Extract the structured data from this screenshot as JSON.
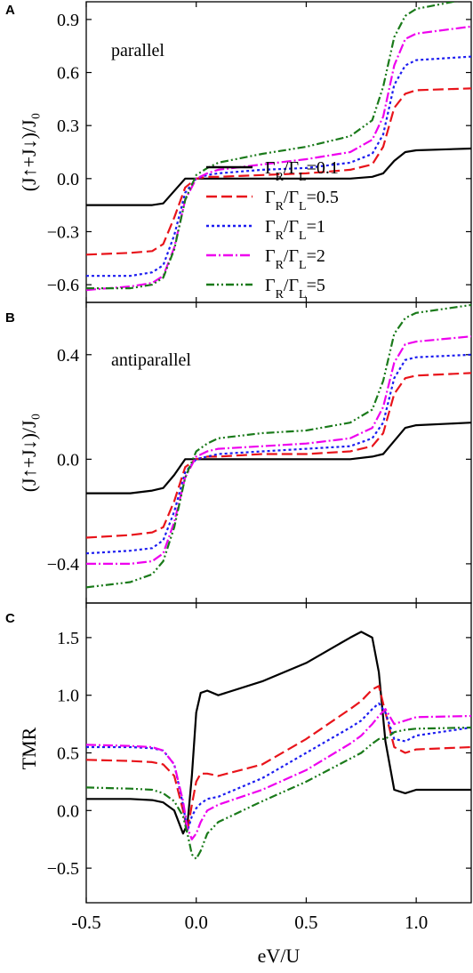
{
  "figure": {
    "x_axis_label": "eV/U",
    "x_ticks": [
      "-0.5",
      "0.0",
      "0.5",
      "1.0"
    ],
    "x_range": [
      -0.5,
      1.25
    ]
  },
  "legend": [
    {
      "label": "Γ_R/Γ_L=0.1",
      "color": "#000000",
      "dash": "solid"
    },
    {
      "label": "Γ_R/Γ_L=0.5",
      "color": "#e8141b",
      "dash": "dashed"
    },
    {
      "label": "Γ_R/Γ_L=1",
      "color": "#1c1cf0",
      "dash": "dotted"
    },
    {
      "label": "Γ_R/Γ_L=2",
      "color": "#ee00ee",
      "dash": "dashdot"
    },
    {
      "label": "Γ_R/Γ_L=5",
      "color": "#1a7a1a",
      "dash": "dashdotdot"
    }
  ],
  "chart_data": [
    {
      "type": "line",
      "panel_label": "A",
      "annotation": "parallel",
      "ylabel": "(J↑+J↓)/J₀",
      "xlim": [
        -0.5,
        1.25
      ],
      "ylim": [
        -0.7,
        1.0
      ],
      "y_ticks": [
        -0.6,
        -0.3,
        0.0,
        0.3,
        0.6,
        0.9
      ],
      "x": [
        -0.5,
        -0.3,
        -0.2,
        -0.15,
        -0.1,
        -0.05,
        0.0,
        0.05,
        0.1,
        0.3,
        0.5,
        0.7,
        0.8,
        0.85,
        0.9,
        0.95,
        1.0,
        1.25
      ],
      "series": [
        {
          "name": "Γ_R/Γ_L=0.1",
          "values": [
            -0.15,
            -0.15,
            -0.15,
            -0.14,
            -0.07,
            0.0,
            0.0,
            0.0,
            0.0,
            0.0,
            0.0,
            0.0,
            0.01,
            0.03,
            0.1,
            0.15,
            0.16,
            0.17
          ]
        },
        {
          "name": "Γ_R/Γ_L=0.5",
          "values": [
            -0.43,
            -0.42,
            -0.41,
            -0.37,
            -0.22,
            -0.05,
            0.0,
            0.01,
            0.01,
            0.02,
            0.03,
            0.05,
            0.08,
            0.18,
            0.4,
            0.48,
            0.5,
            0.51
          ]
        },
        {
          "name": "Γ_R/Γ_L=1",
          "values": [
            -0.55,
            -0.55,
            -0.53,
            -0.49,
            -0.32,
            -0.08,
            0.0,
            0.02,
            0.03,
            0.05,
            0.06,
            0.09,
            0.14,
            0.25,
            0.53,
            0.64,
            0.67,
            0.69
          ]
        },
        {
          "name": "Γ_R/Γ_L=2",
          "values": [
            -0.63,
            -0.61,
            -0.59,
            -0.55,
            -0.39,
            -0.12,
            0.0,
            0.03,
            0.05,
            0.08,
            0.11,
            0.15,
            0.22,
            0.35,
            0.64,
            0.79,
            0.82,
            0.86
          ]
        },
        {
          "name": "Γ_R/Γ_L=5",
          "values": [
            -0.62,
            -0.62,
            -0.6,
            -0.56,
            -0.4,
            -0.12,
            0.02,
            0.06,
            0.09,
            0.14,
            0.18,
            0.24,
            0.33,
            0.52,
            0.8,
            0.92,
            0.96,
            1.02
          ]
        }
      ]
    },
    {
      "type": "line",
      "panel_label": "B",
      "annotation": "antiparallel",
      "ylabel": "(J↑+J↓)/J₀",
      "xlim": [
        -0.5,
        1.25
      ],
      "ylim": [
        -0.55,
        0.6
      ],
      "y_ticks": [
        -0.4,
        0.0,
        0.4
      ],
      "x": [
        -0.5,
        -0.3,
        -0.2,
        -0.15,
        -0.1,
        -0.05,
        0.0,
        0.05,
        0.1,
        0.3,
        0.5,
        0.7,
        0.8,
        0.85,
        0.9,
        0.95,
        1.0,
        1.25
      ],
      "series": [
        {
          "name": "Γ_R/Γ_L=0.1",
          "values": [
            -0.13,
            -0.13,
            -0.12,
            -0.11,
            -0.06,
            0.0,
            0.0,
            0.0,
            0.0,
            0.0,
            0.0,
            0.0,
            0.01,
            0.02,
            0.07,
            0.12,
            0.13,
            0.14
          ]
        },
        {
          "name": "Γ_R/Γ_L=0.5",
          "values": [
            -0.3,
            -0.29,
            -0.28,
            -0.26,
            -0.16,
            -0.03,
            0.0,
            0.01,
            0.01,
            0.02,
            0.02,
            0.03,
            0.05,
            0.1,
            0.25,
            0.31,
            0.32,
            0.33
          ]
        },
        {
          "name": "Γ_R/Γ_L=1",
          "values": [
            -0.36,
            -0.35,
            -0.34,
            -0.31,
            -0.2,
            -0.05,
            0.0,
            0.01,
            0.02,
            0.03,
            0.04,
            0.05,
            0.08,
            0.14,
            0.31,
            0.38,
            0.39,
            0.4
          ]
        },
        {
          "name": "Γ_R/Γ_L=2",
          "values": [
            -0.4,
            -0.4,
            -0.39,
            -0.36,
            -0.24,
            -0.07,
            0.01,
            0.03,
            0.04,
            0.05,
            0.06,
            0.08,
            0.12,
            0.2,
            0.37,
            0.44,
            0.45,
            0.47
          ]
        },
        {
          "name": "Γ_R/Γ_L=5",
          "values": [
            -0.49,
            -0.47,
            -0.44,
            -0.39,
            -0.26,
            -0.07,
            0.03,
            0.06,
            0.08,
            0.1,
            0.11,
            0.14,
            0.19,
            0.3,
            0.48,
            0.54,
            0.56,
            0.59
          ]
        }
      ]
    },
    {
      "type": "line",
      "panel_label": "C",
      "ylabel": "TMR",
      "xlabel": "eV/U",
      "xlim": [
        -0.5,
        1.25
      ],
      "ylim": [
        -0.8,
        1.8
      ],
      "y_ticks": [
        -0.5,
        0.0,
        0.5,
        1.0,
        1.5
      ],
      "x": [
        -0.5,
        -0.3,
        -0.2,
        -0.15,
        -0.1,
        -0.06,
        -0.04,
        -0.02,
        0.0,
        0.02,
        0.05,
        0.1,
        0.3,
        0.5,
        0.7,
        0.75,
        0.8,
        0.83,
        0.86,
        0.9,
        0.95,
        1.0,
        1.25
      ],
      "series": [
        {
          "name": "Γ_R/Γ_L=0.1",
          "values": [
            0.1,
            0.1,
            0.09,
            0.07,
            0.0,
            -0.2,
            -0.12,
            0.3,
            0.85,
            1.02,
            1.04,
            1.0,
            1.12,
            1.28,
            1.5,
            1.55,
            1.5,
            1.2,
            0.6,
            0.18,
            0.15,
            0.18,
            0.18
          ]
        },
        {
          "name": "Γ_R/Γ_L=0.5",
          "values": [
            0.44,
            0.43,
            0.42,
            0.4,
            0.3,
            0.0,
            -0.18,
            0.05,
            0.25,
            0.32,
            0.32,
            0.3,
            0.4,
            0.62,
            0.88,
            0.95,
            1.05,
            1.08,
            0.85,
            0.55,
            0.5,
            0.53,
            0.55
          ]
        },
        {
          "name": "Γ_R/Γ_L=1",
          "values": [
            0.55,
            0.55,
            0.54,
            0.52,
            0.4,
            0.05,
            -0.18,
            -0.05,
            0.02,
            0.06,
            0.1,
            0.12,
            0.28,
            0.5,
            0.72,
            0.78,
            0.88,
            0.93,
            0.85,
            0.62,
            0.6,
            0.65,
            0.72
          ]
        },
        {
          "name": "Γ_R/Γ_L=2",
          "values": [
            0.57,
            0.56,
            0.55,
            0.52,
            0.4,
            0.08,
            -0.15,
            -0.25,
            -0.2,
            -0.1,
            0.0,
            0.05,
            0.18,
            0.35,
            0.58,
            0.65,
            0.75,
            0.82,
            0.88,
            0.75,
            0.78,
            0.81,
            0.82
          ]
        },
        {
          "name": "Γ_R/Γ_L=5",
          "values": [
            0.2,
            0.19,
            0.18,
            0.15,
            0.08,
            -0.05,
            -0.2,
            -0.38,
            -0.42,
            -0.35,
            -0.2,
            -0.1,
            0.08,
            0.25,
            0.45,
            0.5,
            0.58,
            0.62,
            0.62,
            0.68,
            0.7,
            0.71,
            0.72
          ]
        }
      ]
    }
  ]
}
